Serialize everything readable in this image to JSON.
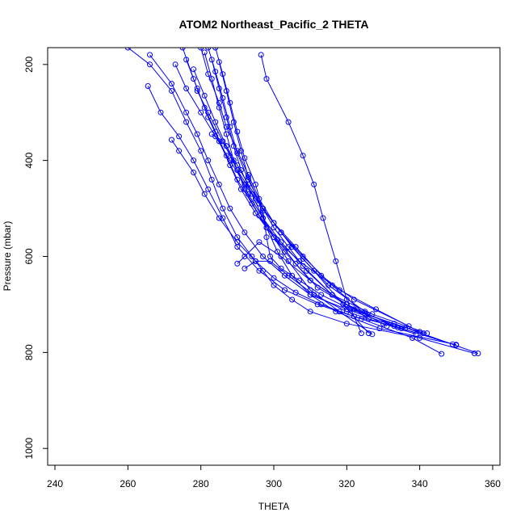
{
  "chart_data": {
    "type": "line",
    "title": "ATOM2 Northeast_Pacific_2 THETA",
    "xlabel": "THETA",
    "ylabel": "Pressure (mbar)",
    "xlim": [
      238,
      362
    ],
    "ylim": [
      1035,
      165
    ],
    "y_reversed": true,
    "x_ticks": [
      240,
      260,
      280,
      300,
      320,
      340,
      360
    ],
    "y_ticks": [
      200,
      400,
      600,
      800,
      1000
    ],
    "grid": false,
    "legend": "none",
    "series_color": "#0000ff",
    "marker": "open-circle",
    "series": [
      {
        "x": [
          260,
          266,
          272,
          276,
          280,
          283,
          286,
          290,
          294,
          297,
          300,
          305,
          310,
          320,
          340,
          355
        ],
        "y": [
          165,
          200,
          255,
          320,
          380,
          440,
          500,
          560,
          600,
          630,
          660,
          690,
          715,
          740,
          770,
          802
        ]
      },
      {
        "x": [
          266,
          272,
          276,
          279,
          282,
          285,
          288,
          292,
          297,
          303,
          310,
          320,
          335,
          350
        ],
        "y": [
          180,
          240,
          300,
          345,
          400,
          450,
          500,
          550,
          600,
          640,
          680,
          710,
          750,
          785
        ]
      },
      {
        "x": [
          265.5,
          269,
          274,
          278,
          282,
          286,
          290,
          296,
          303,
          312,
          324,
          338,
          346
        ],
        "y": [
          245,
          300,
          350,
          400,
          460,
          520,
          580,
          630,
          670,
          700,
          730,
          770,
          803
        ]
      },
      {
        "x": [
          272,
          274,
          278,
          281,
          285,
          290,
          295,
          300,
          306,
          313,
          322,
          333,
          349
        ],
        "y": [
          357,
          380,
          425,
          470,
          520,
          570,
          610,
          645,
          675,
          700,
          725,
          745,
          783
        ]
      },
      {
        "x": [
          273,
          276,
          280,
          284,
          288,
          292,
          297,
          302,
          308,
          316,
          325,
          341
        ],
        "y": [
          200,
          250,
          300,
          350,
          400,
          450,
          500,
          550,
          600,
          660,
          720,
          760
        ]
      },
      {
        "x": [
          275,
          278,
          281,
          284,
          287,
          290,
          294,
          298,
          303,
          310,
          320,
          334
        ],
        "y": [
          165,
          230,
          290,
          340,
          390,
          440,
          490,
          540,
          590,
          650,
          700,
          748
        ]
      },
      {
        "x": [
          276,
          279,
          282,
          285,
          288,
          291,
          295,
          300,
          307,
          318,
          328,
          340
        ],
        "y": [
          190,
          250,
          310,
          360,
          410,
          460,
          510,
          560,
          610,
          670,
          710,
          757
        ]
      },
      {
        "x": [
          278,
          281,
          284,
          287,
          290,
          293,
          297,
          302,
          308,
          316,
          326,
          339
        ],
        "y": [
          210,
          265,
          320,
          370,
          420,
          470,
          520,
          570,
          620,
          680,
          730,
          762
        ]
      },
      {
        "x": [
          280,
          282,
          285,
          287,
          290,
          293,
          296,
          300,
          305,
          311,
          319,
          326
        ],
        "y": [
          165,
          220,
          280,
          330,
          380,
          430,
          480,
          530,
          580,
          630,
          700,
          760
        ]
      },
      {
        "x": [
          281,
          283,
          285,
          287,
          289,
          292,
          296,
          301,
          306,
          312,
          322,
          336
        ],
        "y": [
          175,
          230,
          290,
          345,
          400,
          460,
          515,
          565,
          615,
          665,
          710,
          750
        ]
      },
      {
        "x": [
          282,
          284,
          286,
          288,
          290,
          293,
          297,
          302,
          308,
          315,
          325,
          342
        ],
        "y": [
          165,
          215,
          270,
          330,
          385,
          440,
          500,
          550,
          605,
          660,
          715,
          760
        ]
      },
      {
        "x": [
          283,
          285,
          287,
          289,
          291,
          294,
          297,
          300,
          304,
          310,
          318,
          327
        ],
        "y": [
          190,
          250,
          310,
          370,
          420,
          470,
          520,
          560,
          610,
          670,
          715,
          762
        ]
      },
      {
        "x": [
          284,
          286,
          288,
          290,
          292,
          295,
          297,
          298,
          299,
          302,
          307,
          313,
          321,
          333,
          356
        ],
        "y": [
          165,
          220,
          280,
          340,
          395,
          450,
          505,
          560,
          600,
          625,
          650,
          680,
          710,
          740,
          802
        ]
      },
      {
        "x": [
          285,
          287,
          289,
          291,
          293,
          296,
          298,
          301,
          305,
          310,
          317,
          329,
          350
        ],
        "y": [
          195,
          255,
          320,
          380,
          435,
          490,
          540,
          590,
          640,
          680,
          715,
          750,
          784
        ]
      },
      {
        "x": [
          296.5,
          298,
          304,
          308,
          311,
          313.5,
          317,
          320,
          324
        ],
        "y": [
          180,
          230,
          320,
          390,
          450,
          520,
          610,
          690,
          760
        ]
      },
      {
        "x": [
          283,
          287,
          290,
          293,
          297,
          300,
          304,
          309,
          316,
          327
        ],
        "y": [
          345,
          370,
          410,
          450,
          500,
          540,
          580,
          630,
          680,
          720
        ]
      },
      {
        "x": [
          279,
          282,
          286,
          290,
          295,
          300,
          306,
          313,
          322,
          337
        ],
        "y": [
          255,
          300,
          360,
          420,
          480,
          530,
          580,
          640,
          690,
          745
        ]
      },
      {
        "x": [
          290,
          292,
          296,
          302,
          310,
          320,
          331
        ],
        "y": [
          615,
          600,
          570,
          600,
          650,
          700,
          745
        ]
      },
      {
        "x": [
          292,
          295,
          299,
          304,
          311,
          320,
          330
        ],
        "y": [
          625,
          610,
          610,
          640,
          680,
          715,
          740
        ]
      }
    ]
  }
}
